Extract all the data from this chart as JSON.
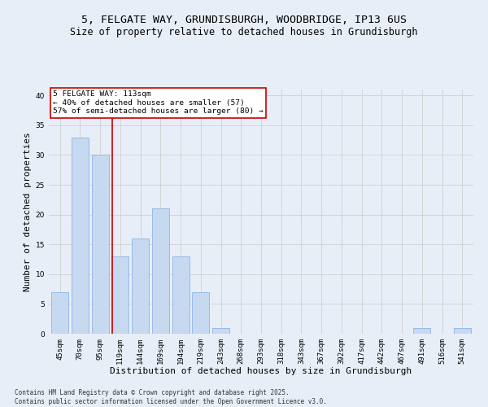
{
  "title": "5, FELGATE WAY, GRUNDISBURGH, WOODBRIDGE, IP13 6US",
  "subtitle": "Size of property relative to detached houses in Grundisburgh",
  "xlabel": "Distribution of detached houses by size in Grundisburgh",
  "ylabel": "Number of detached properties",
  "categories": [
    "45sqm",
    "70sqm",
    "95sqm",
    "119sqm",
    "144sqm",
    "169sqm",
    "194sqm",
    "219sqm",
    "243sqm",
    "268sqm",
    "293sqm",
    "318sqm",
    "343sqm",
    "367sqm",
    "392sqm",
    "417sqm",
    "442sqm",
    "467sqm",
    "491sqm",
    "516sqm",
    "541sqm"
  ],
  "values": [
    7,
    33,
    30,
    13,
    16,
    21,
    13,
    7,
    1,
    0,
    0,
    0,
    0,
    0,
    0,
    0,
    0,
    0,
    1,
    0,
    1
  ],
  "bar_color": "#c6d9f1",
  "bar_edge_color": "#8eb4e3",
  "property_label": "5 FELGATE WAY: 113sqm",
  "annotation_line1": "← 40% of detached houses are smaller (57)",
  "annotation_line2": "57% of semi-detached houses are larger (80) →",
  "annotation_box_color": "#ffffff",
  "annotation_box_edge": "#cc0000",
  "property_line_color": "#cc0000",
  "property_line_x": 2.62,
  "ylim": [
    0,
    41
  ],
  "yticks": [
    0,
    5,
    10,
    15,
    20,
    25,
    30,
    35,
    40
  ],
  "grid_color": "#d0d0d0",
  "bg_color": "#e8eef7",
  "footer": "Contains HM Land Registry data © Crown copyright and database right 2025.\nContains public sector information licensed under the Open Government Licence v3.0.",
  "title_fontsize": 9.5,
  "subtitle_fontsize": 8.5,
  "xlabel_fontsize": 8,
  "ylabel_fontsize": 8,
  "tick_fontsize": 6.5,
  "footer_fontsize": 5.5,
  "annotation_fontsize": 6.8
}
